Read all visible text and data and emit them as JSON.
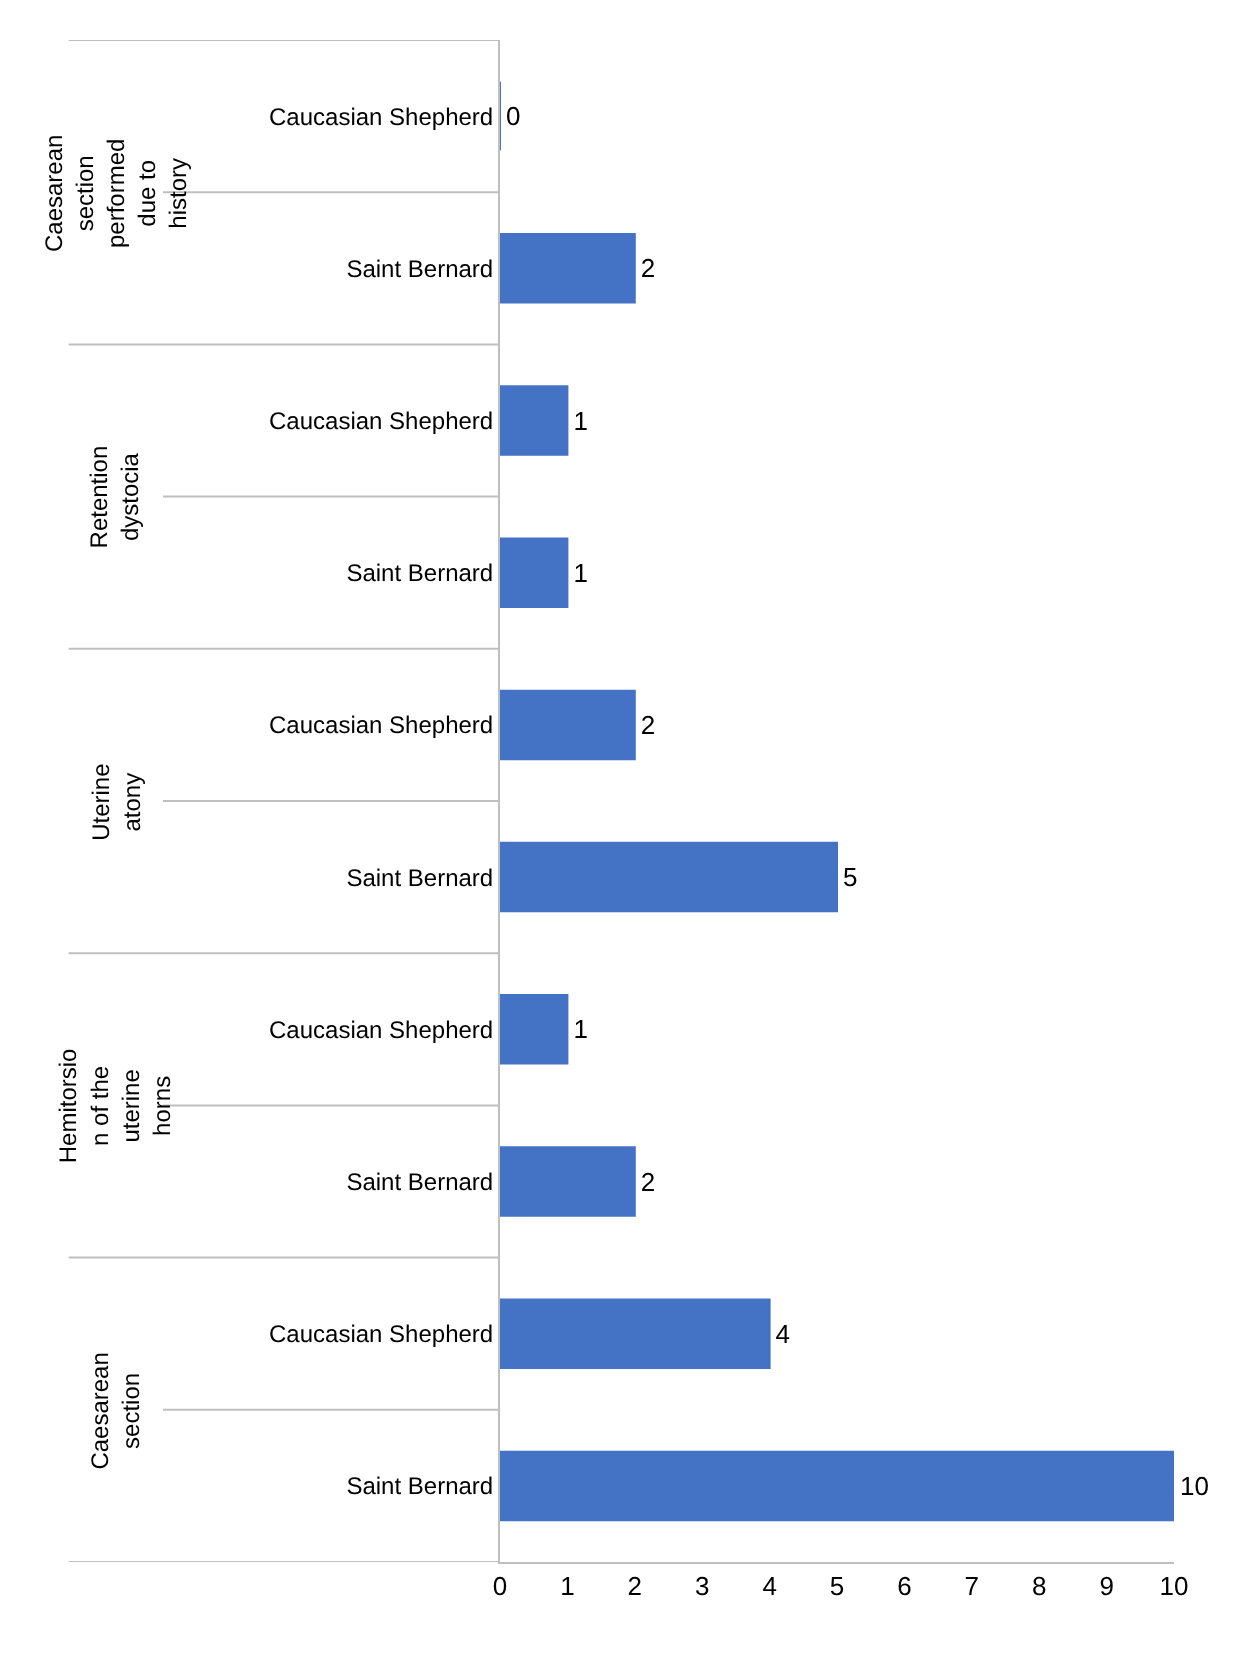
{
  "chart_data": {
    "type": "bar",
    "orientation": "horizontal",
    "categories": [
      "Caucasian Shepherd",
      "Saint Bernard",
      "Caucasian Shepherd",
      "Saint Bernard",
      "Caucasian Shepherd",
      "Saint Bernard",
      "Caucasian Shepherd",
      "Saint Bernard",
      "Caucasian Shepherd",
      "Saint Bernard"
    ],
    "values": [
      0,
      2,
      1,
      1,
      2,
      5,
      1,
      2,
      4,
      10
    ],
    "color": "#4472c4",
    "xlim": [
      0,
      10
    ],
    "xticks": [
      0,
      1,
      2,
      3,
      4,
      5,
      6,
      7,
      8,
      9,
      10
    ],
    "grid": false,
    "legend": false,
    "data_labels": true,
    "annotations": [
      "Caesarean section performed due to history",
      "Retention dystocia",
      "Uterine atony",
      "Hemitorsion of the uterine horns",
      "Caesarean section"
    ]
  }
}
